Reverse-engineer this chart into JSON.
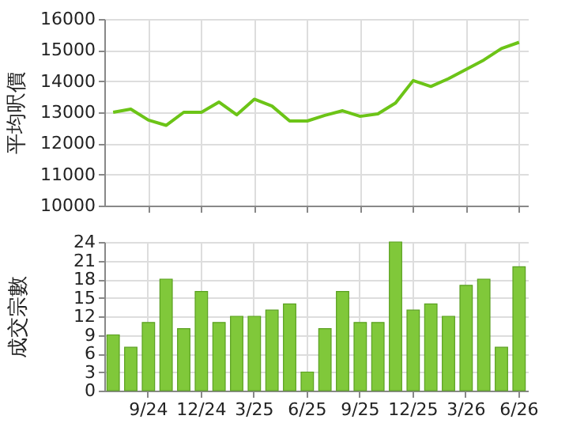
{
  "chart_data": [
    {
      "type": "line",
      "ylabel": "平均呎價",
      "categories": [
        null,
        null,
        null,
        null,
        null,
        null,
        null,
        null,
        null,
        null,
        null,
        null,
        null,
        null,
        null,
        null,
        null,
        null,
        null,
        null,
        null,
        null,
        null,
        null
      ],
      "series": [
        {
          "color": "#6cc417",
          "values": [
            13000,
            13100,
            12750,
            12580,
            13000,
            13000,
            13330,
            12920,
            13420,
            13200,
            12720,
            12720,
            12900,
            13050,
            12870,
            12950,
            13300,
            14020,
            13830,
            14080,
            14380,
            14680,
            15050,
            15250
          ]
        }
      ],
      "ylim": [
        10000,
        16000
      ],
      "yticks": [
        10000,
        11000,
        12000,
        13000,
        14000,
        15000,
        16000
      ],
      "grid": true,
      "tick_labels": "y",
      "marker": "none",
      "line_style": "solid"
    },
    {
      "type": "bar",
      "ylabel": "成交宗數",
      "categories": [
        null,
        null,
        "9/24",
        null,
        null,
        "12/24",
        null,
        null,
        "3/25",
        null,
        null,
        "6/25",
        null,
        null,
        "9/25",
        null,
        null,
        "12/25",
        null,
        null,
        "3/26",
        null,
        null,
        "6/26"
      ],
      "series": [
        {
          "color": "#80c83a",
          "values": [
            9,
            7,
            11,
            18,
            10,
            16,
            11,
            12,
            12,
            13,
            14,
            3,
            10,
            16,
            11,
            11,
            24,
            13,
            14,
            12,
            17,
            18,
            7,
            20
          ]
        }
      ],
      "ylim": [
        0,
        24
      ],
      "yticks": [
        0,
        3,
        6,
        9,
        12,
        15,
        18,
        21,
        24
      ],
      "grid": true
    }
  ]
}
